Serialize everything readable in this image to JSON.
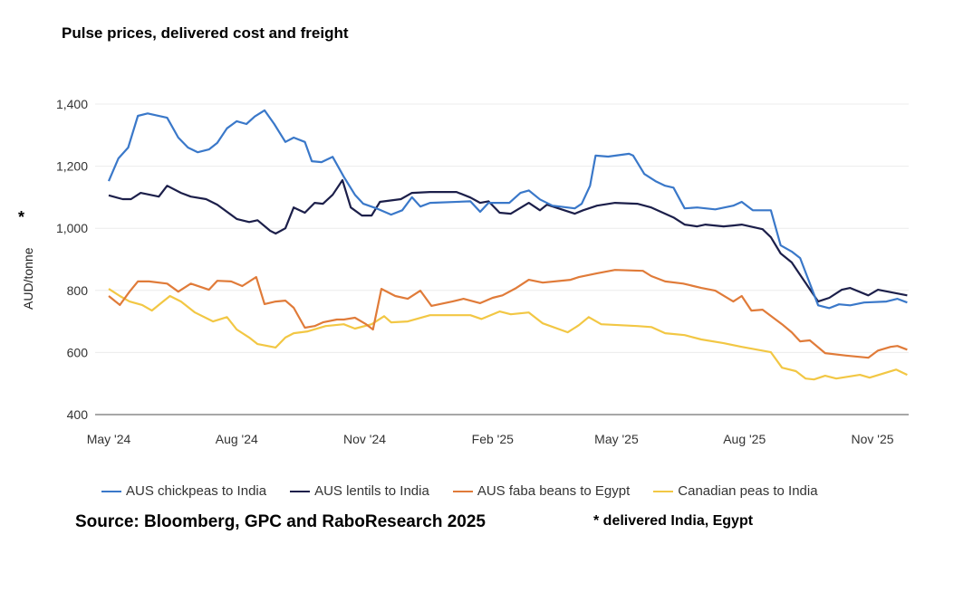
{
  "chart_data": {
    "type": "line",
    "title": "Pulse prices, delivered cost and freight",
    "ylabel": "AUD/tonne",
    "ylabel_marker": "*",
    "xlabel": "",
    "ylim": [
      400,
      1400
    ],
    "yticks": [
      400,
      600,
      800,
      1000,
      1200,
      1400
    ],
    "ytick_labels": [
      "400",
      "600",
      "800",
      "1,000",
      "1,200",
      "1,400"
    ],
    "xticks": [
      "2024-05-01",
      "2024-08-01",
      "2024-11-01",
      "2025-02-01",
      "2025-05-01",
      "2025-08-01",
      "2025-11-01"
    ],
    "xtick_labels": [
      "May '24",
      "Aug '24",
      "Nov '24",
      "Feb '25",
      "May '25",
      "Aug '25",
      "Nov '25"
    ],
    "grid": "horizontal",
    "legend_position": "bottom",
    "series": [
      {
        "name": "AUS chickpeas to India",
        "color": "#3a78c9",
        "points": [
          [
            "2024-05-01",
            1152
          ],
          [
            "2024-05-08",
            1225
          ],
          [
            "2024-05-15",
            1260
          ],
          [
            "2024-05-22",
            1362
          ],
          [
            "2024-05-29",
            1370
          ],
          [
            "2024-06-12",
            1356
          ],
          [
            "2024-06-20",
            1292
          ],
          [
            "2024-06-27",
            1260
          ],
          [
            "2024-07-04",
            1245
          ],
          [
            "2024-07-12",
            1254
          ],
          [
            "2024-07-18",
            1275
          ],
          [
            "2024-07-25",
            1322
          ],
          [
            "2024-08-01",
            1345
          ],
          [
            "2024-08-08",
            1336
          ],
          [
            "2024-08-14",
            1360
          ],
          [
            "2024-08-21",
            1380
          ],
          [
            "2024-08-28",
            1336
          ],
          [
            "2024-09-05",
            1278
          ],
          [
            "2024-09-11",
            1292
          ],
          [
            "2024-09-19",
            1278
          ],
          [
            "2024-09-24",
            1216
          ],
          [
            "2024-10-01",
            1213
          ],
          [
            "2024-10-09",
            1230
          ],
          [
            "2024-10-17",
            1166
          ],
          [
            "2024-10-25",
            1108
          ],
          [
            "2024-10-31",
            1079
          ],
          [
            "2024-11-09",
            1065
          ],
          [
            "2024-11-20",
            1044
          ],
          [
            "2024-11-28",
            1058
          ],
          [
            "2024-12-05",
            1100
          ],
          [
            "2024-12-11",
            1070
          ],
          [
            "2024-12-18",
            1082
          ],
          [
            "2025-01-16",
            1087
          ],
          [
            "2025-01-23",
            1053
          ],
          [
            "2025-01-29",
            1082
          ],
          [
            "2025-02-13",
            1082
          ],
          [
            "2025-02-21",
            1114
          ],
          [
            "2025-02-27",
            1122
          ],
          [
            "2025-03-07",
            1093
          ],
          [
            "2025-03-16",
            1073
          ],
          [
            "2025-04-01",
            1064
          ],
          [
            "2025-04-06",
            1079
          ],
          [
            "2025-04-12",
            1137
          ],
          [
            "2025-04-16",
            1234
          ],
          [
            "2025-04-25",
            1231
          ],
          [
            "2025-05-10",
            1240
          ],
          [
            "2025-05-13",
            1234
          ],
          [
            "2025-05-21",
            1175
          ],
          [
            "2025-05-29",
            1152
          ],
          [
            "2025-06-05",
            1137
          ],
          [
            "2025-06-11",
            1131
          ],
          [
            "2025-06-19",
            1064
          ],
          [
            "2025-06-28",
            1067
          ],
          [
            "2025-07-11",
            1061
          ],
          [
            "2025-07-24",
            1073
          ],
          [
            "2025-07-30",
            1085
          ],
          [
            "2025-08-07",
            1058
          ],
          [
            "2025-08-20",
            1058
          ],
          [
            "2025-08-27",
            945
          ],
          [
            "2025-09-04",
            925
          ],
          [
            "2025-09-10",
            904
          ],
          [
            "2025-09-23",
            752
          ],
          [
            "2025-10-01",
            743
          ],
          [
            "2025-10-08",
            755
          ],
          [
            "2025-10-16",
            752
          ],
          [
            "2025-10-26",
            761
          ],
          [
            "2025-11-11",
            764
          ],
          [
            "2025-11-19",
            773
          ],
          [
            "2025-11-26",
            761
          ]
        ]
      },
      {
        "name": "AUS lentils to India",
        "color": "#1c1f4a",
        "points": [
          [
            "2024-05-01",
            1106
          ],
          [
            "2024-05-11",
            1094
          ],
          [
            "2024-05-17",
            1094
          ],
          [
            "2024-05-24",
            1114
          ],
          [
            "2024-06-06",
            1102
          ],
          [
            "2024-06-12",
            1137
          ],
          [
            "2024-06-22",
            1114
          ],
          [
            "2024-06-29",
            1102
          ],
          [
            "2024-07-10",
            1094
          ],
          [
            "2024-07-18",
            1076
          ],
          [
            "2024-08-01",
            1030
          ],
          [
            "2024-08-10",
            1020
          ],
          [
            "2024-08-16",
            1026
          ],
          [
            "2024-08-25",
            992
          ],
          [
            "2024-08-29",
            983
          ],
          [
            "2024-09-05",
            1000
          ],
          [
            "2024-09-11",
            1067
          ],
          [
            "2024-09-19",
            1050
          ],
          [
            "2024-09-26",
            1082
          ],
          [
            "2024-10-02",
            1079
          ],
          [
            "2024-10-09",
            1108
          ],
          [
            "2024-10-16",
            1155
          ],
          [
            "2024-10-22",
            1067
          ],
          [
            "2024-10-30",
            1041
          ],
          [
            "2024-11-06",
            1041
          ],
          [
            "2024-11-12",
            1085
          ],
          [
            "2024-11-27",
            1094
          ],
          [
            "2024-12-05",
            1114
          ],
          [
            "2024-12-18",
            1117
          ],
          [
            "2025-01-06",
            1117
          ],
          [
            "2025-01-16",
            1099
          ],
          [
            "2025-01-23",
            1082
          ],
          [
            "2025-01-29",
            1087
          ],
          [
            "2025-02-06",
            1050
          ],
          [
            "2025-02-14",
            1047
          ],
          [
            "2025-02-27",
            1082
          ],
          [
            "2025-03-07",
            1058
          ],
          [
            "2025-03-12",
            1076
          ],
          [
            "2025-04-01",
            1047
          ],
          [
            "2025-04-07",
            1058
          ],
          [
            "2025-04-17",
            1073
          ],
          [
            "2025-04-30",
            1082
          ],
          [
            "2025-05-16",
            1079
          ],
          [
            "2025-05-26",
            1067
          ],
          [
            "2025-06-05",
            1047
          ],
          [
            "2025-06-11",
            1035
          ],
          [
            "2025-06-19",
            1012
          ],
          [
            "2025-06-28",
            1006
          ],
          [
            "2025-07-04",
            1012
          ],
          [
            "2025-07-17",
            1006
          ],
          [
            "2025-07-24",
            1009
          ],
          [
            "2025-07-30",
            1012
          ],
          [
            "2025-08-14",
            997
          ],
          [
            "2025-08-20",
            971
          ],
          [
            "2025-08-27",
            919
          ],
          [
            "2025-09-04",
            890
          ],
          [
            "2025-09-12",
            837
          ],
          [
            "2025-09-23",
            764
          ],
          [
            "2025-10-01",
            776
          ],
          [
            "2025-10-10",
            802
          ],
          [
            "2025-10-16",
            808
          ],
          [
            "2025-10-29",
            784
          ],
          [
            "2025-11-05",
            802
          ],
          [
            "2025-11-26",
            784
          ]
        ]
      },
      {
        "name": "AUS faba beans to Egypt",
        "color": "#e07b39",
        "points": [
          [
            "2024-05-01",
            782
          ],
          [
            "2024-05-09",
            753
          ],
          [
            "2024-05-16",
            796
          ],
          [
            "2024-05-22",
            829
          ],
          [
            "2024-05-30",
            829
          ],
          [
            "2024-06-12",
            822
          ],
          [
            "2024-06-20",
            796
          ],
          [
            "2024-06-29",
            822
          ],
          [
            "2024-07-12",
            802
          ],
          [
            "2024-07-18",
            831
          ],
          [
            "2024-07-28",
            829
          ],
          [
            "2024-08-05",
            814
          ],
          [
            "2024-08-15",
            843
          ],
          [
            "2024-08-21",
            756
          ],
          [
            "2024-08-29",
            764
          ],
          [
            "2024-09-05",
            767
          ],
          [
            "2024-09-11",
            744
          ],
          [
            "2024-09-19",
            680
          ],
          [
            "2024-09-26",
            685
          ],
          [
            "2024-10-02",
            697
          ],
          [
            "2024-10-12",
            706
          ],
          [
            "2024-10-17",
            706
          ],
          [
            "2024-10-25",
            712
          ],
          [
            "2024-11-02",
            691
          ],
          [
            "2024-11-07",
            674
          ],
          [
            "2024-11-13",
            805
          ],
          [
            "2024-11-23",
            782
          ],
          [
            "2024-12-02",
            773
          ],
          [
            "2024-12-11",
            799
          ],
          [
            "2024-12-19",
            750
          ],
          [
            "2025-01-03",
            764
          ],
          [
            "2025-01-11",
            773
          ],
          [
            "2025-01-23",
            759
          ],
          [
            "2025-02-01",
            776
          ],
          [
            "2025-02-08",
            784
          ],
          [
            "2025-02-18",
            808
          ],
          [
            "2025-02-27",
            834
          ],
          [
            "2025-03-09",
            825
          ],
          [
            "2025-03-29",
            834
          ],
          [
            "2025-04-04",
            843
          ],
          [
            "2025-04-17",
            855
          ],
          [
            "2025-04-30",
            866
          ],
          [
            "2025-05-20",
            863
          ],
          [
            "2025-05-26",
            846
          ],
          [
            "2025-06-05",
            829
          ],
          [
            "2025-06-18",
            822
          ],
          [
            "2025-07-01",
            808
          ],
          [
            "2025-07-11",
            799
          ],
          [
            "2025-07-24",
            764
          ],
          [
            "2025-07-30",
            782
          ],
          [
            "2025-08-06",
            735
          ],
          [
            "2025-08-14",
            738
          ],
          [
            "2025-08-28",
            691
          ],
          [
            "2025-09-04",
            665
          ],
          [
            "2025-09-10",
            636
          ],
          [
            "2025-09-17",
            639
          ],
          [
            "2025-09-28",
            598
          ],
          [
            "2025-10-13",
            590
          ],
          [
            "2025-10-29",
            583
          ],
          [
            "2025-11-05",
            606
          ],
          [
            "2025-11-14",
            618
          ],
          [
            "2025-11-19",
            621
          ],
          [
            "2025-11-26",
            609
          ]
        ]
      },
      {
        "name": "Canadian peas to India",
        "color": "#f2c744",
        "points": [
          [
            "2024-05-01",
            805
          ],
          [
            "2024-05-09",
            782
          ],
          [
            "2024-05-16",
            764
          ],
          [
            "2024-05-25",
            753
          ],
          [
            "2024-06-01",
            735
          ],
          [
            "2024-06-09",
            764
          ],
          [
            "2024-06-14",
            782
          ],
          [
            "2024-06-22",
            764
          ],
          [
            "2024-07-02",
            729
          ],
          [
            "2024-07-15",
            700
          ],
          [
            "2024-07-25",
            714
          ],
          [
            "2024-08-01",
            674
          ],
          [
            "2024-08-10",
            648
          ],
          [
            "2024-08-16",
            627
          ],
          [
            "2024-08-29",
            616
          ],
          [
            "2024-09-05",
            648
          ],
          [
            "2024-09-11",
            662
          ],
          [
            "2024-09-21",
            668
          ],
          [
            "2024-10-04",
            685
          ],
          [
            "2024-10-17",
            691
          ],
          [
            "2024-10-25",
            677
          ],
          [
            "2024-11-06",
            691
          ],
          [
            "2024-11-15",
            717
          ],
          [
            "2024-11-20",
            697
          ],
          [
            "2024-12-02",
            700
          ],
          [
            "2024-12-18",
            720
          ],
          [
            "2025-01-16",
            720
          ],
          [
            "2025-01-24",
            708
          ],
          [
            "2025-02-06",
            732
          ],
          [
            "2025-02-14",
            723
          ],
          [
            "2025-02-27",
            729
          ],
          [
            "2025-03-09",
            694
          ],
          [
            "2025-03-27",
            665
          ],
          [
            "2025-04-04",
            688
          ],
          [
            "2025-04-11",
            714
          ],
          [
            "2025-04-20",
            691
          ],
          [
            "2025-05-16",
            685
          ],
          [
            "2025-05-26",
            682
          ],
          [
            "2025-06-05",
            662
          ],
          [
            "2025-06-19",
            656
          ],
          [
            "2025-07-01",
            642
          ],
          [
            "2025-07-17",
            630
          ],
          [
            "2025-07-30",
            618
          ],
          [
            "2025-08-20",
            601
          ],
          [
            "2025-08-28",
            551
          ],
          [
            "2025-09-07",
            540
          ],
          [
            "2025-09-14",
            516
          ],
          [
            "2025-09-20",
            513
          ],
          [
            "2025-09-28",
            525
          ],
          [
            "2025-10-06",
            516
          ],
          [
            "2025-10-23",
            528
          ],
          [
            "2025-10-30",
            519
          ],
          [
            "2025-11-18",
            545
          ],
          [
            "2025-11-26",
            528
          ]
        ]
      }
    ]
  },
  "footer": {
    "source": "Source: Bloomberg, GPC and RaboResearch 2025",
    "note": "* delivered India, Egypt"
  }
}
